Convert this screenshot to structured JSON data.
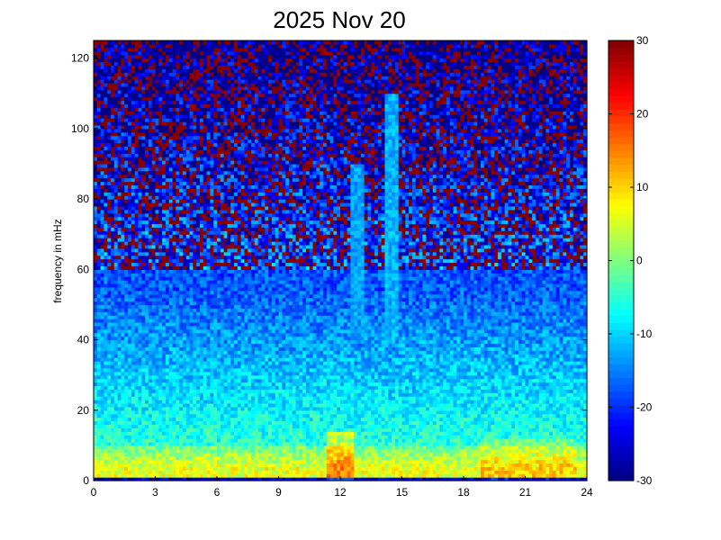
{
  "chart_data": {
    "type": "heatmap",
    "title": "2025 Nov 20",
    "xlabel": "",
    "ylabel": "frequency in mHz",
    "xlim": [
      0,
      24
    ],
    "ylim": [
      0,
      125
    ],
    "x_ticks": [
      0,
      3,
      6,
      9,
      12,
      15,
      18,
      21,
      24
    ],
    "x_tick_labels": [
      "0",
      "3",
      "6",
      "9",
      "12",
      "15",
      "18",
      "21",
      "24"
    ],
    "y_ticks": [
      0,
      20,
      40,
      60,
      80,
      100,
      120
    ],
    "y_tick_labels": [
      "0",
      "20",
      "40",
      "60",
      "80",
      "100",
      "120"
    ],
    "colorbar": {
      "range": [
        -30,
        30
      ],
      "ticks": [
        -30,
        -20,
        -10,
        0,
        10,
        20,
        30
      ],
      "tick_labels": [
        "-30",
        "-20",
        "-10",
        "0",
        "10",
        "20",
        "30"
      ],
      "colormap": "jet"
    },
    "features": [
      {
        "description": "strong low-frequency band",
        "freq_range": [
          2,
          12
        ],
        "level": 10
      },
      {
        "description": "enhanced power",
        "time_range": [
          11.5,
          12.5
        ],
        "freq_range": [
          0,
          20
        ],
        "level": 20
      },
      {
        "description": "vertical bursts",
        "time_range": [
          12.5,
          15
        ],
        "freq_range": [
          40,
          110
        ],
        "level": -12
      }
    ],
    "grid": false,
    "legend": "none"
  },
  "colors": {
    "background": "#ffffff",
    "axis": "#000000"
  }
}
